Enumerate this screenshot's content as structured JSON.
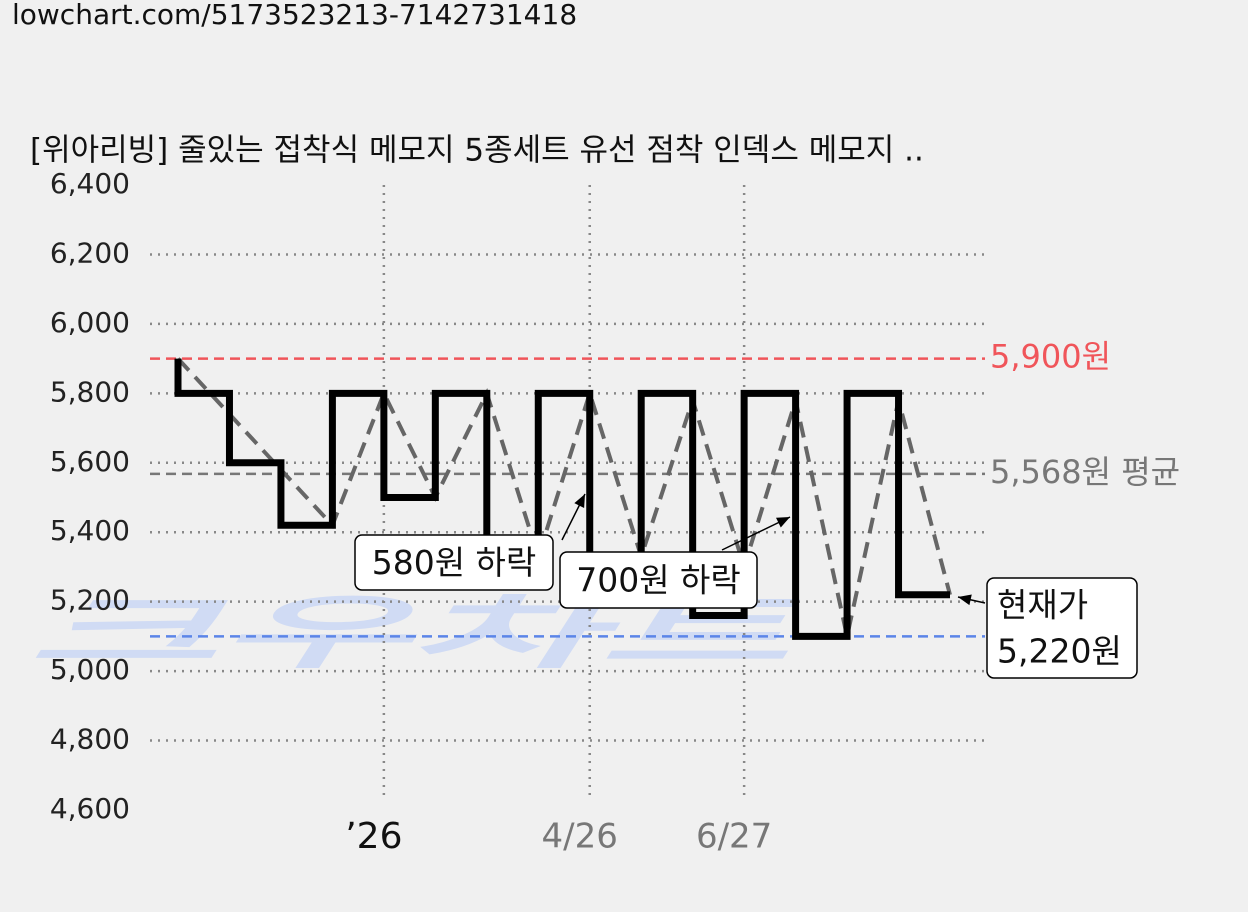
{
  "url": "lowchart.com/5173523213-7142731418",
  "chart_data": {
    "type": "line",
    "title": "[위아리빙] 줄있는 접착식 메모지 5종세트 유선 점착 인덱스 메모지 ..",
    "watermark": "크우차트",
    "categories": [
      null,
      null,
      null,
      null,
      "’26",
      null,
      null,
      null,
      "4/26",
      null,
      null,
      "6/27",
      null,
      null,
      null,
      null
    ],
    "series": [
      {
        "name": "price",
        "color": "#000000",
        "step": true,
        "values": [
          5900,
          5800,
          5600,
          5420,
          5800,
          5500,
          5800,
          5330,
          5800,
          5330,
          5800,
          5160,
          5800,
          5100,
          5800,
          5220
        ]
      },
      {
        "name": "trend",
        "color": "#666666",
        "dashed": true,
        "values": [
          5900,
          5740,
          5580,
          5420,
          5800,
          5500,
          5800,
          5330,
          5800,
          5330,
          5780,
          5300,
          5780,
          5100,
          5780,
          5220
        ]
      }
    ],
    "ylim": [
      4600,
      6400
    ],
    "yticks": [
      {
        "value": 4600,
        "label": "4,600"
      },
      {
        "value": 4800,
        "label": "4,800"
      },
      {
        "value": 5000,
        "label": "5,000"
      },
      {
        "value": 5200,
        "label": "5,200"
      },
      {
        "value": 5400,
        "label": "5,400"
      },
      {
        "value": 5600,
        "label": "5,600"
      },
      {
        "value": 5800,
        "label": "5,800"
      },
      {
        "value": 6000,
        "label": "6,000"
      },
      {
        "value": 6200,
        "label": "6,200"
      },
      {
        "value": 6400,
        "label": "6,400"
      }
    ],
    "grid": true,
    "reference_lines": [
      {
        "value": 5900,
        "label": "5,900원",
        "color": "#f0555a"
      },
      {
        "value": 5568,
        "label": "5,568원 평균",
        "color": "#777777"
      },
      {
        "value": 5100,
        "color": "#5b85e8"
      }
    ],
    "annotations": [
      {
        "lines": [
          "580원 하락"
        ]
      },
      {
        "lines": [
          "700원 하락"
        ]
      },
      {
        "lines": [
          "현재가",
          "5,220원"
        ]
      }
    ]
  }
}
